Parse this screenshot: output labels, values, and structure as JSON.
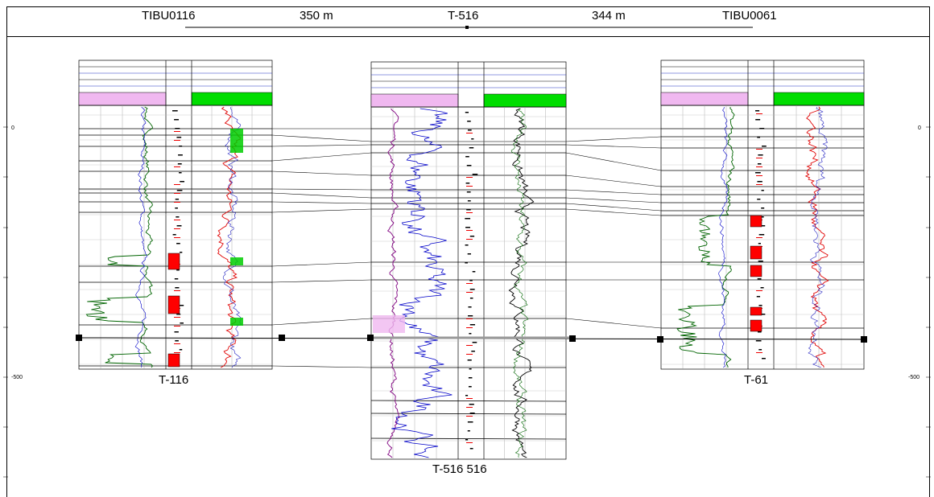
{
  "header": {
    "left_well": "TIBU0116",
    "left_distance": "350 m",
    "center_well": "T-516",
    "right_distance": "344 m",
    "right_well": "TIBU0061"
  },
  "depth_axis": {
    "labels": [
      "0",
      "-500"
    ]
  },
  "wells": [
    {
      "id": "T-116",
      "label": "T-116",
      "track1_header_color": "#f0b8f0",
      "track3_header_color": "#00dd00",
      "track1_curve_color": "#006400",
      "track1_curve2_color": "#0000c8",
      "track3_curve_color": "#e00000",
      "track3_curve2_color": "#2020c0"
    },
    {
      "id": "T-516",
      "label": "T-516 516",
      "track1_header_color": "#f0b8f0",
      "track3_header_color": "#00dd00",
      "track1_curve_color": "#800080",
      "track1_curve2_color": "#0000c8",
      "track3_curve_color": "#000000",
      "track3_curve2_color": "#006400"
    },
    {
      "id": "T-61",
      "label": "T-61",
      "track1_header_color": "#f0b8f0",
      "track3_header_color": "#00dd00",
      "track1_curve_color": "#006400",
      "track1_curve2_color": "#0000c8",
      "track3_curve_color": "#e00000",
      "track3_curve2_color": "#2020c0"
    }
  ],
  "colors": {
    "correlation_line": "#000000",
    "datum_line": "#000000",
    "core_fill": "#ff0000",
    "sand_fill": "#00cc00"
  }
}
